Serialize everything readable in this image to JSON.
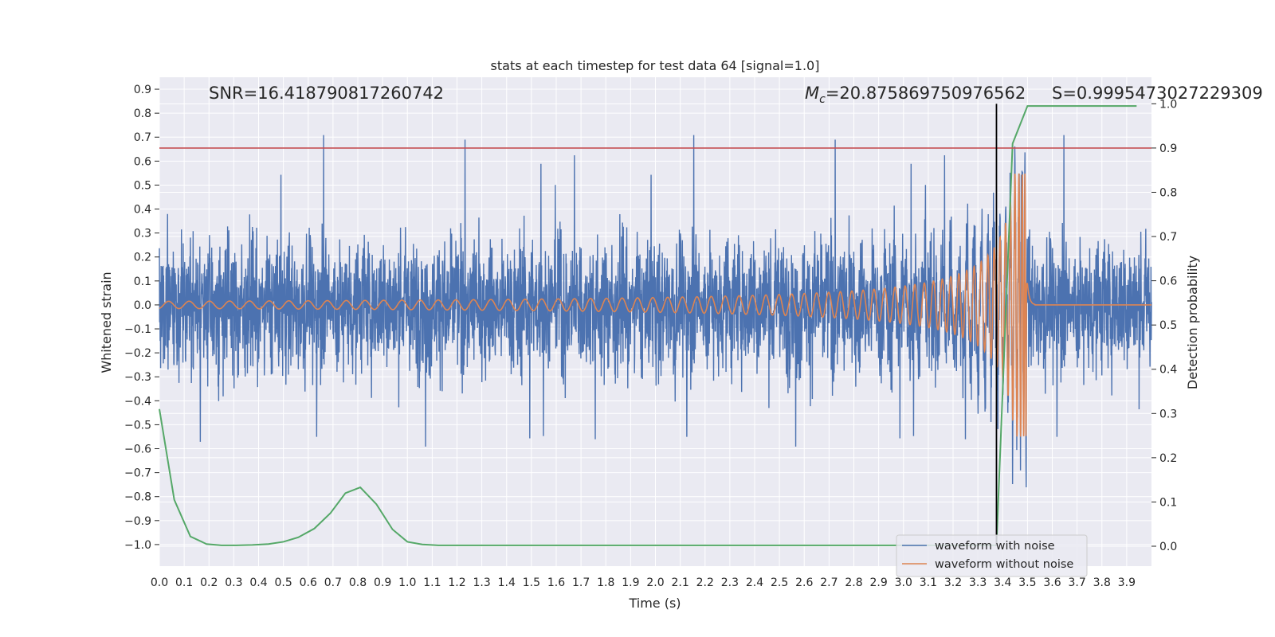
{
  "chart_data": {
    "type": "line",
    "title": "stats at each timestep for test data 64 [signal=1.0]",
    "xlabel": "Time (s)",
    "ylabel": "Whitened strain",
    "ylabel_right": "Detection probability",
    "xlim": [
      0.0,
      4.0
    ],
    "ylim": [
      -1.09,
      0.95
    ],
    "ylim_right": [
      -0.045,
      1.06
    ],
    "x_ticks": [
      "0.0",
      "0.1",
      "0.2",
      "0.3",
      "0.4",
      "0.5",
      "0.6",
      "0.7",
      "0.8",
      "0.9",
      "1.0",
      "1.1",
      "1.2",
      "1.3",
      "1.4",
      "1.5",
      "1.6",
      "1.7",
      "1.8",
      "1.9",
      "2.0",
      "2.1",
      "2.2",
      "2.3",
      "2.4",
      "2.5",
      "2.6",
      "2.7",
      "2.8",
      "2.9",
      "3.0",
      "3.1",
      "3.2",
      "3.3",
      "3.4",
      "3.5",
      "3.6",
      "3.7",
      "3.8",
      "3.9"
    ],
    "y_ticks": [
      "0.9",
      "0.8",
      "0.7",
      "0.6",
      "0.5",
      "0.4",
      "0.3",
      "0.2",
      "0.1",
      "0.0",
      "-0.1",
      "-0.2",
      "-0.3",
      "-0.4",
      "-0.5",
      "-0.6",
      "-0.7",
      "-0.8",
      "-0.9",
      "-1.0"
    ],
    "y_ticks_right": [
      "1.0",
      "0.9",
      "0.8",
      "0.7",
      "0.6",
      "0.5",
      "0.4",
      "0.3",
      "0.2",
      "0.1",
      "0.0"
    ],
    "grid": true,
    "legend_position": "lower-right",
    "annotations": {
      "snr": "SNR=16.418790817260742",
      "mc_symbol": "M",
      "mc_sub": "c",
      "mc_value": "=20.875869750976562",
      "s": "S=0.9995473027229309"
    },
    "threshold_right_axis": 0.9,
    "event_time": 3.375,
    "series": [
      {
        "name": "waveform with noise",
        "color": "#4c72b0",
        "description_values": {
          "typical_amplitude": 0.25,
          "max": 0.85,
          "min": -1.02,
          "peak_time": 3.5
        }
      },
      {
        "name": "waveform without noise",
        "color": "#dd8452",
        "chirp": {
          "start_amplitude": 0.015,
          "peak_amplitude_positive": 0.55,
          "peak_amplitude_negative": -0.62,
          "start_frequency_hz": 12,
          "merger_time": 3.5,
          "ringdown_level": 0.0
        }
      },
      {
        "axis": "right",
        "color": "#55a868",
        "x": [
          0.0,
          0.06,
          0.125,
          0.19,
          0.25,
          0.31,
          0.375,
          0.44,
          0.5,
          0.56,
          0.625,
          0.69,
          0.75,
          0.81,
          0.875,
          0.94,
          1.0,
          1.06,
          1.125,
          1.5,
          2.0,
          2.5,
          3.0,
          3.25,
          3.375,
          3.44,
          3.5,
          3.94
        ],
        "values": [
          0.31,
          0.105,
          0.022,
          0.005,
          0.002,
          0.002,
          0.003,
          0.005,
          0.01,
          0.02,
          0.04,
          0.075,
          0.12,
          0.133,
          0.095,
          0.038,
          0.01,
          0.004,
          0.002,
          0.002,
          0.002,
          0.002,
          0.002,
          0.002,
          0.002,
          0.91,
          0.995,
          0.995
        ]
      }
    ],
    "colors": {
      "background": "#eaeaf2",
      "grid": "#ffffff",
      "threshold": "#c44e52",
      "event_line": "#000000"
    }
  }
}
